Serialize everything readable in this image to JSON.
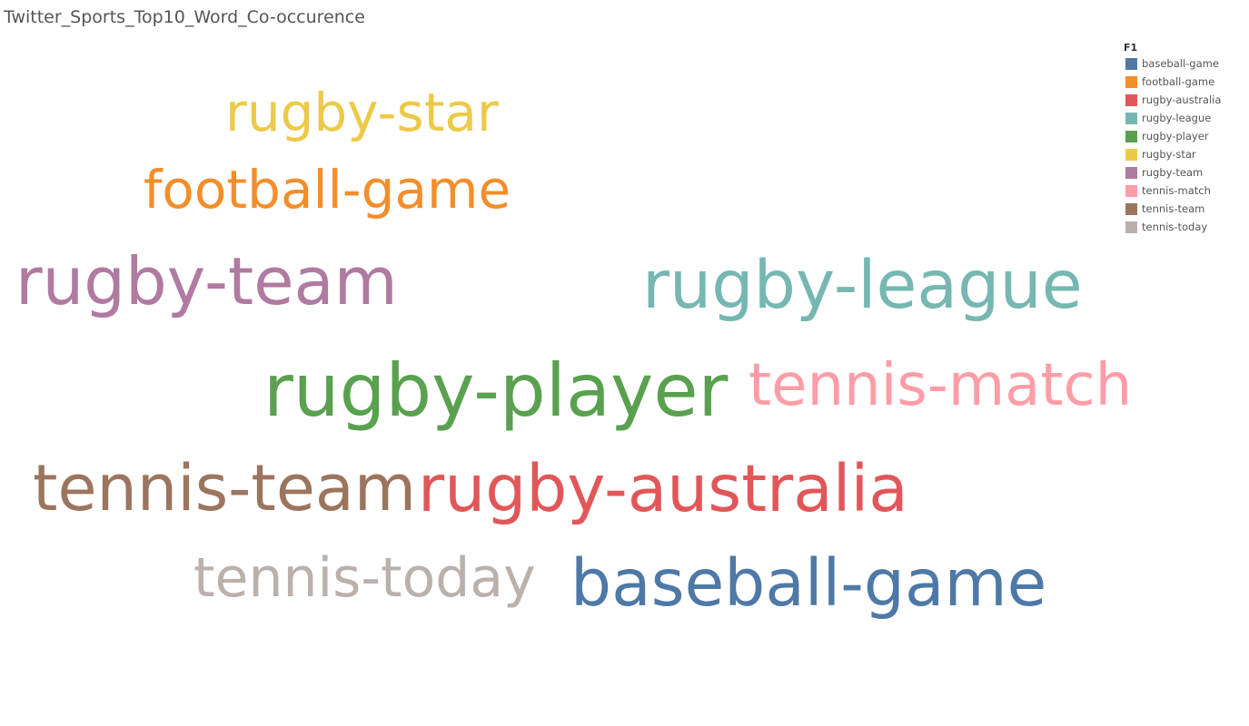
{
  "title": "Twitter_Sports_Top10_Word_Co-occurence",
  "chart_data": {
    "type": "wordcloud",
    "title": "Twitter_Sports_Top10_Word_Co-occurence",
    "legend": {
      "title": "F1",
      "placement": "top-right"
    },
    "words": [
      {
        "text": "rugby-star",
        "color": "#EDC948"
      },
      {
        "text": "football-game",
        "color": "#F28E2B"
      },
      {
        "text": "rugby-team",
        "color": "#B07AA1"
      },
      {
        "text": "rugby-league",
        "color": "#76B7B2"
      },
      {
        "text": "rugby-player",
        "color": "#59A14F"
      },
      {
        "text": "tennis-match",
        "color": "#FF9DA7"
      },
      {
        "text": "tennis-team",
        "color": "#9C755F"
      },
      {
        "text": "rugby-australia",
        "color": "#E15759"
      },
      {
        "text": "tennis-today",
        "color": "#BAB0AC"
      },
      {
        "text": "baseball-game",
        "color": "#4E79A7"
      }
    ],
    "legend_entries": [
      {
        "label": "baseball-game",
        "color": "#4E79A7"
      },
      {
        "label": "football-game",
        "color": "#F28E2B"
      },
      {
        "label": "rugby-australia",
        "color": "#E15759"
      },
      {
        "label": "rugby-league",
        "color": "#76B7B2"
      },
      {
        "label": "rugby-player",
        "color": "#59A14F"
      },
      {
        "label": "rugby-star",
        "color": "#EDC948"
      },
      {
        "label": "rugby-team",
        "color": "#B07AA1"
      },
      {
        "label": "tennis-match",
        "color": "#FF9DA7"
      },
      {
        "label": "tennis-team",
        "color": "#9C755F"
      },
      {
        "label": "tennis-today",
        "color": "#BAB0AC"
      }
    ]
  }
}
